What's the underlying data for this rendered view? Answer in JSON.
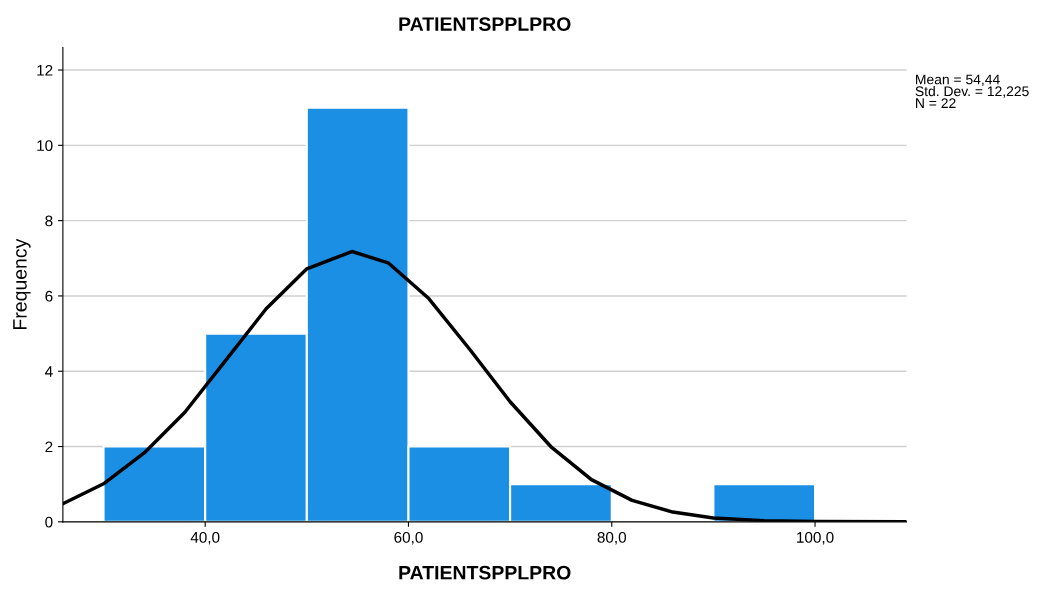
{
  "chart_data": {
    "type": "histogram",
    "title": "PATIENTSPPLPRO",
    "xlabel": "PATIENTSPPLPRO",
    "ylabel": "Frequency",
    "bins": [
      30,
      40,
      50,
      60,
      70,
      80,
      90,
      100
    ],
    "values": [
      2,
      5,
      11,
      2,
      1,
      0,
      1
    ],
    "color": "#1a8fe3",
    "series": [
      {
        "type": "line",
        "color": "#000000",
        "x": [
          26,
          30,
          34,
          38,
          42,
          46,
          50,
          54.44,
          58,
          62,
          66,
          70,
          74,
          78,
          82,
          86,
          90,
          95,
          100,
          109
        ],
        "values": [
          0.48,
          1.01,
          1.83,
          2.91,
          4.28,
          5.66,
          6.72,
          7.18,
          6.88,
          5.93,
          4.59,
          3.19,
          2.0,
          1.12,
          0.57,
          0.26,
          0.1,
          0.03,
          0.01,
          0.0
        ]
      }
    ],
    "xlim": [
      26,
      109
    ],
    "xticks": [
      {
        "value": 40,
        "label": "40,0"
      },
      {
        "value": 60,
        "label": "60,0"
      },
      {
        "value": 80,
        "label": "80,0"
      },
      {
        "value": 100,
        "label": "100,0"
      }
    ],
    "ylim": [
      0,
      12.6
    ],
    "yticks": [
      0,
      2,
      4,
      6,
      8,
      10,
      12
    ],
    "grid": "y",
    "annotations": [
      "Mean = 54,44",
      "Std. Dev. = 12,225",
      "N = 22"
    ]
  }
}
